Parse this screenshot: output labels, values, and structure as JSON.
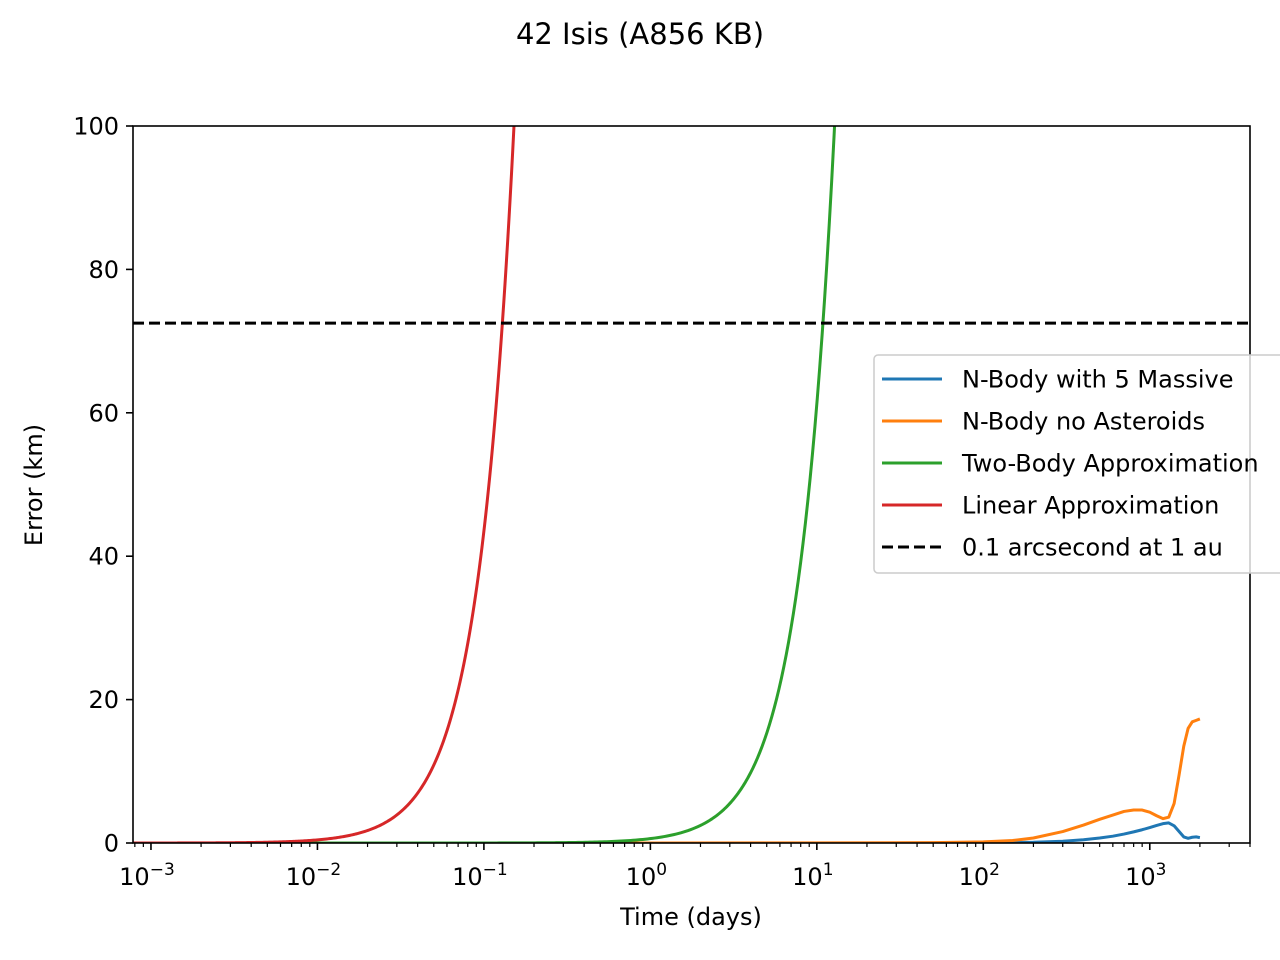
{
  "chart_data": {
    "type": "line",
    "title": "42 Isis (A856 KB)",
    "xlabel": "Time (days)",
    "ylabel": "Error (km)",
    "xscale": "log",
    "xlim": [
      0.00078,
      4000
    ],
    "ylim": [
      0,
      100
    ],
    "xticks": [
      {
        "value": 0.001,
        "base": "10",
        "exp": "−3"
      },
      {
        "value": 0.01,
        "base": "10",
        "exp": "−2"
      },
      {
        "value": 0.1,
        "base": "10",
        "exp": "−1"
      },
      {
        "value": 1,
        "base": "10",
        "exp": "0"
      },
      {
        "value": 10,
        "base": "10",
        "exp": "1"
      },
      {
        "value": 100,
        "base": "10",
        "exp": "2"
      },
      {
        "value": 1000,
        "base": "10",
        "exp": "3"
      }
    ],
    "yticks": [
      "0",
      "20",
      "40",
      "60",
      "80",
      "100"
    ],
    "grid": false,
    "legend_position": "right",
    "series": [
      {
        "name": "N-Body with 5 Massive",
        "color": "#1f77b4",
        "dash": false,
        "x": [
          0.00078,
          1,
          10,
          100,
          200,
          300,
          400,
          500,
          600,
          700,
          800,
          900,
          1000,
          1100,
          1200,
          1300,
          1400,
          1500,
          1600,
          1700,
          1800,
          1900,
          2000
        ],
        "y": [
          0,
          0,
          0,
          0.02,
          0.1,
          0.25,
          0.45,
          0.7,
          0.95,
          1.25,
          1.55,
          1.85,
          2.15,
          2.45,
          2.7,
          2.8,
          2.4,
          1.6,
          0.85,
          0.65,
          0.8,
          0.85,
          0.75
        ]
      },
      {
        "name": "N-Body no Asteroids",
        "color": "#ff7f0e",
        "dash": false,
        "x": [
          0.00078,
          1,
          10,
          50,
          100,
          150,
          200,
          300,
          400,
          500,
          600,
          700,
          800,
          900,
          1000,
          1100,
          1200,
          1300,
          1400,
          1500,
          1600,
          1700,
          1800,
          1900,
          2000
        ],
        "y": [
          0,
          0,
          0.02,
          0.05,
          0.15,
          0.35,
          0.7,
          1.6,
          2.5,
          3.3,
          3.9,
          4.4,
          4.6,
          4.6,
          4.3,
          3.8,
          3.4,
          3.6,
          5.5,
          9.5,
          13.5,
          16,
          16.9,
          17.1,
          17.3
        ]
      },
      {
        "name": "Two-Body Approximation",
        "color": "#2ca02c",
        "dash": false,
        "fn": {
          "a": 0.6124,
          "p": 2,
          "xmin": 0.00078,
          "xmax": 16
        }
      },
      {
        "name": "Linear Approximation",
        "color": "#d62728",
        "dash": false,
        "fn": {
          "a": 4350,
          "p": 2,
          "xmin": 0.00078,
          "xmax": 0.16
        }
      },
      {
        "name": "0.1 arcsecond at 1 au",
        "color": "#000000",
        "dash": true,
        "hline": 72.5
      }
    ]
  }
}
